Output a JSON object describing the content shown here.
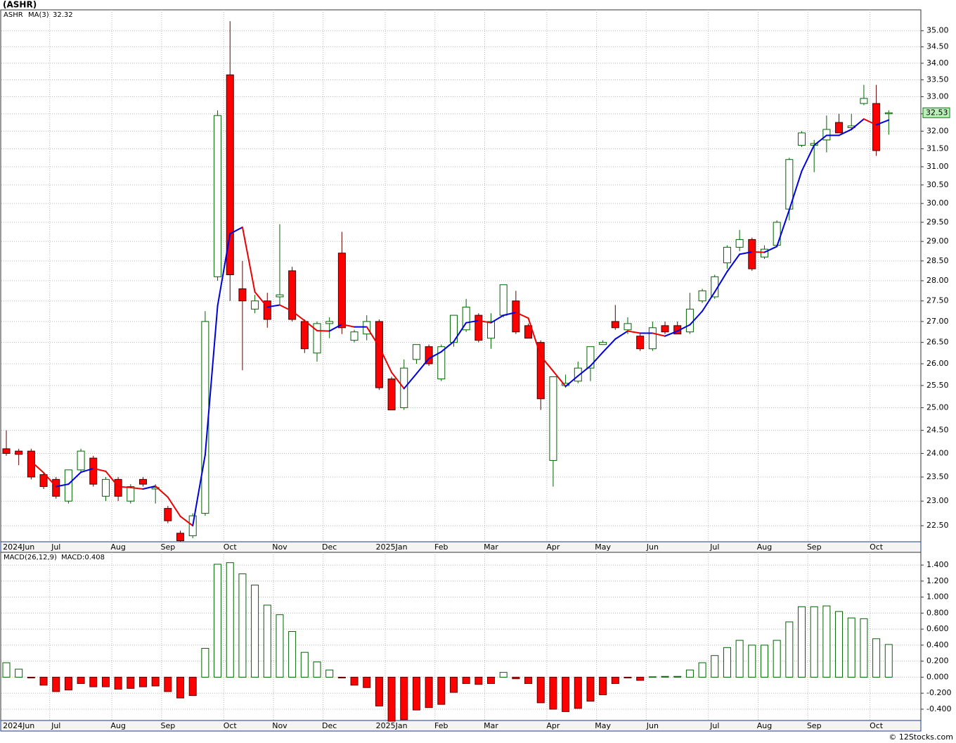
{
  "chart_data": [
    {
      "type": "candlestick",
      "title": "(ASHR)",
      "symbol": "ASHR",
      "source": "© 12Stocks.com",
      "log_scale": true,
      "grid": true,
      "colors": {
        "up": "#006400",
        "down": "#ff0000",
        "ma_up": "#0000dd",
        "ma_down": "#ee0000",
        "symbol": "#008000",
        "ma_label": "#0000cc"
      },
      "categories": [
        null,
        "2024Jun",
        null,
        null,
        "Jul",
        null,
        null,
        null,
        null,
        "Aug",
        null,
        null,
        null,
        "Sep",
        null,
        null,
        null,
        null,
        "Oct",
        null,
        null,
        null,
        "Nov",
        null,
        null,
        null,
        "Dec",
        null,
        null,
        null,
        null,
        "2025Jan",
        null,
        null,
        null,
        "Feb",
        null,
        null,
        null,
        "Mar",
        null,
        null,
        null,
        null,
        "Apr",
        null,
        null,
        null,
        "May",
        null,
        null,
        null,
        "Jun",
        null,
        null,
        null,
        null,
        "Jul",
        null,
        null,
        null,
        "Aug",
        null,
        null,
        null,
        "Sep",
        null,
        null,
        null,
        null,
        "Oct",
        null
      ],
      "open": [
        24.1,
        24.05,
        24.05,
        23.55,
        23.45,
        23.0,
        23.65,
        23.9,
        23.1,
        23.45,
        23.0,
        23.45,
        23.25,
        22.85,
        22.35,
        22.3,
        22.75,
        28.1,
        33.65,
        27.8,
        27.3,
        27.5,
        27.6,
        28.25,
        27.0,
        26.25,
        26.95,
        28.7,
        26.55,
        26.7,
        27.0,
        25.65,
        25.0,
        26.1,
        26.4,
        25.65,
        26.5,
        26.8,
        27.15,
        26.6,
        27.15,
        27.5,
        26.9,
        26.5,
        23.85,
        25.5,
        25.6,
        25.9,
        26.45,
        27.0,
        26.8,
        26.65,
        26.35,
        26.9,
        26.9,
        26.75,
        27.5,
        27.6,
        28.45,
        28.85,
        29.05,
        28.6,
        28.9,
        29.85,
        31.6,
        31.6,
        31.75,
        32.25,
        32.1,
        32.8,
        32.8,
        32.5
      ],
      "high": [
        24.5,
        24.1,
        24.1,
        23.6,
        23.5,
        23.65,
        24.1,
        23.95,
        23.5,
        23.5,
        23.35,
        23.5,
        23.35,
        22.9,
        22.4,
        22.75,
        27.25,
        32.6,
        35.3,
        28.5,
        27.65,
        27.7,
        29.45,
        28.35,
        27.05,
        27.0,
        27.1,
        29.25,
        26.8,
        27.15,
        27.05,
        25.7,
        26.1,
        26.45,
        26.45,
        26.45,
        27.15,
        27.55,
        27.2,
        27.2,
        27.9,
        27.75,
        26.95,
        26.55,
        25.7,
        25.75,
        26.05,
        26.4,
        26.55,
        27.4,
        27.1,
        26.7,
        27.0,
        27.0,
        27.0,
        27.7,
        27.8,
        28.15,
        28.9,
        29.3,
        29.1,
        28.9,
        29.55,
        31.25,
        32.0,
        31.75,
        32.45,
        32.5,
        32.5,
        33.35,
        33.35,
        32.6
      ],
      "low": [
        23.95,
        23.75,
        23.45,
        23.25,
        23.05,
        22.95,
        23.6,
        23.3,
        23.0,
        23.0,
        22.95,
        23.3,
        22.95,
        22.55,
        22.18,
        22.25,
        22.7,
        28.0,
        27.5,
        25.85,
        27.2,
        26.85,
        27.4,
        27.0,
        26.25,
        26.05,
        26.6,
        26.7,
        26.5,
        26.55,
        25.4,
        24.95,
        24.95,
        26.0,
        25.95,
        25.6,
        26.4,
        26.75,
        26.5,
        26.35,
        27.1,
        26.7,
        26.6,
        24.95,
        23.3,
        25.45,
        25.55,
        25.6,
        26.45,
        26.8,
        26.7,
        26.3,
        26.3,
        26.7,
        26.7,
        26.7,
        27.45,
        27.55,
        28.3,
        28.75,
        28.25,
        28.55,
        28.85,
        29.55,
        31.55,
        30.85,
        31.4,
        31.95,
        32.05,
        32.75,
        31.3,
        31.9
      ],
      "close": [
        24.0,
        23.98,
        23.5,
        23.3,
        23.1,
        23.65,
        24.05,
        23.35,
        23.45,
        23.1,
        23.3,
        23.35,
        23.28,
        22.6,
        22.2,
        22.7,
        27.0,
        32.45,
        28.15,
        27.5,
        27.5,
        27.05,
        27.65,
        27.05,
        26.35,
        26.95,
        27.0,
        26.85,
        26.75,
        27.0,
        25.45,
        24.95,
        25.9,
        26.45,
        26.0,
        26.4,
        27.15,
        27.35,
        26.55,
        27.0,
        27.9,
        26.75,
        26.6,
        25.2,
        25.7,
        25.55,
        25.9,
        26.4,
        26.5,
        26.85,
        26.95,
        26.35,
        26.85,
        26.75,
        26.7,
        27.3,
        27.75,
        28.1,
        28.85,
        29.05,
        28.3,
        28.8,
        29.5,
        31.2,
        31.95,
        31.65,
        32.05,
        31.95,
        32.15,
        32.95,
        31.45,
        32.53
      ],
      "ma": {
        "name": "MA(3)",
        "values": [
          null,
          null,
          23.83,
          23.59,
          23.3,
          23.35,
          23.6,
          23.68,
          23.62,
          23.3,
          23.28,
          23.25,
          23.31,
          23.08,
          22.69,
          22.5,
          23.97,
          27.38,
          29.2,
          29.37,
          27.72,
          27.35,
          27.4,
          27.25,
          27.02,
          26.78,
          26.77,
          26.93,
          26.87,
          26.87,
          26.4,
          25.8,
          25.43,
          25.77,
          26.12,
          26.28,
          26.52,
          26.97,
          27.02,
          26.97,
          27.15,
          27.22,
          27.08,
          26.18,
          25.83,
          25.48,
          25.72,
          25.95,
          26.27,
          26.58,
          26.77,
          26.72,
          26.72,
          26.65,
          26.77,
          26.92,
          27.25,
          27.72,
          28.23,
          28.67,
          28.73,
          28.72,
          28.87,
          29.83,
          30.88,
          31.6,
          31.88,
          31.88,
          32.05,
          32.35,
          32.18,
          32.32
        ]
      },
      "ylim": [
        22.18,
        35.66
      ],
      "yticks": [
        {
          "value": 22.5,
          "label": "22.50"
        },
        {
          "value": 23,
          "label": "23.00"
        },
        {
          "value": 23.5,
          "label": "23.50"
        },
        {
          "value": 24,
          "label": "24.00"
        },
        {
          "value": 24.5,
          "label": "24.50"
        },
        {
          "value": 25,
          "label": "25.00"
        },
        {
          "value": 25.5,
          "label": "25.50"
        },
        {
          "value": 26,
          "label": "26.00"
        },
        {
          "value": 26.5,
          "label": "26.50"
        },
        {
          "value": 27,
          "label": "27.00"
        },
        {
          "value": 27.5,
          "label": "27.50"
        },
        {
          "value": 28,
          "label": "28.00"
        },
        {
          "value": 28.5,
          "label": "28.50"
        },
        {
          "value": 29,
          "label": "29.00"
        },
        {
          "value": 29.5,
          "label": "29.50"
        },
        {
          "value": 30,
          "label": "30.00"
        },
        {
          "value": 30.5,
          "label": "30.50"
        },
        {
          "value": 31,
          "label": "31.00"
        },
        {
          "value": 31.5,
          "label": "31.50"
        },
        {
          "value": 32,
          "label": "32.00"
        },
        {
          "value": 32.5,
          "label": "32.50"
        },
        {
          "value": 33,
          "label": "33.00"
        },
        {
          "value": 33.5,
          "label": "33.50"
        },
        {
          "value": 34,
          "label": "34.00"
        },
        {
          "value": 34.5,
          "label": "34.50"
        },
        {
          "value": 35,
          "label": "35.00"
        }
      ]
    },
    {
      "type": "bar",
      "title": "MACD(26,12,9)",
      "legend_prefix": "MACD:",
      "grid": true,
      "colors": {
        "up": "#006400",
        "down": "#ff0000",
        "label": "#0000cc"
      },
      "values": [
        0.18,
        0.1,
        -0.01,
        -0.1,
        -0.18,
        -0.16,
        -0.08,
        -0.12,
        -0.12,
        -0.15,
        -0.14,
        -0.12,
        -0.11,
        -0.18,
        -0.26,
        -0.23,
        0.36,
        1.41,
        1.43,
        1.29,
        1.15,
        0.9,
        0.78,
        0.57,
        0.31,
        0.19,
        0.09,
        -0.01,
        -0.1,
        -0.13,
        -0.36,
        -0.55,
        -0.53,
        -0.41,
        -0.38,
        -0.34,
        -0.19,
        -0.08,
        -0.09,
        -0.08,
        0.06,
        -0.02,
        -0.08,
        -0.32,
        -0.4,
        -0.43,
        -0.39,
        -0.3,
        -0.22,
        -0.08,
        -0.01,
        -0.04,
        0.005,
        0.01,
        0.01,
        0.09,
        0.18,
        0.27,
        0.37,
        0.46,
        0.4,
        0.4,
        0.46,
        0.69,
        0.88,
        0.88,
        0.89,
        0.82,
        0.74,
        0.73,
        0.48,
        0.408
      ],
      "ylim": [
        -0.541,
        1.559
      ],
      "yticks": [
        {
          "value": -0.4,
          "label": "-0.400"
        },
        {
          "value": -0.2,
          "label": "-0.200"
        },
        {
          "value": 0,
          "label": "0.000"
        },
        {
          "value": 0.2,
          "label": "0.200"
        },
        {
          "value": 0.4,
          "label": "0.400"
        },
        {
          "value": 0.6,
          "label": "0.600"
        },
        {
          "value": 0.8,
          "label": "0.800"
        },
        {
          "value": 1,
          "label": "1.000"
        },
        {
          "value": 1.2,
          "label": "1.200"
        },
        {
          "value": 1.4,
          "label": "1.400"
        }
      ]
    }
  ]
}
